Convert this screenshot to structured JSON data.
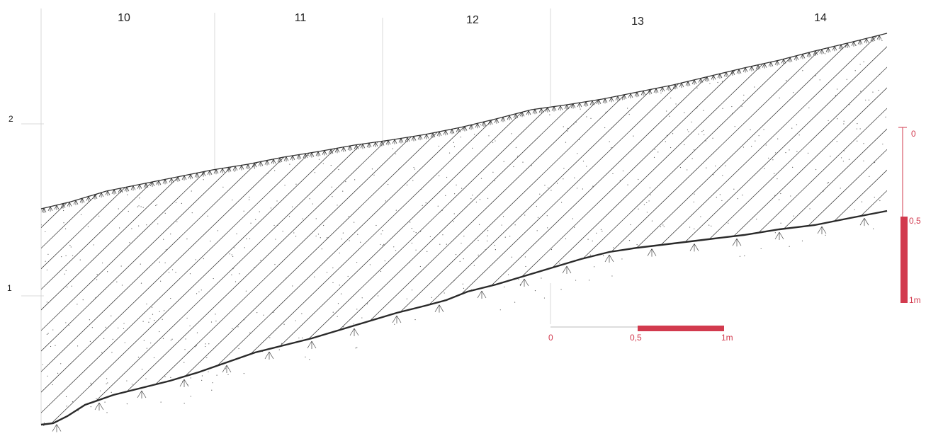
{
  "section": {
    "column_labels": [
      "10",
      "11",
      "12",
      "13",
      "14"
    ],
    "elevation_labels": [
      "2",
      "1"
    ]
  },
  "vertical_scale": {
    "labels": [
      "0",
      "0,5",
      "1m"
    ],
    "color": "#d23a4e"
  },
  "horizontal_scale": {
    "labels": [
      "0",
      "0,5",
      "1m"
    ],
    "color": "#d23a4e"
  },
  "colors": {
    "line": "#222222",
    "hatch": "#2a2a2a",
    "grid": "#cfcfcf",
    "stipple": "#555555"
  }
}
